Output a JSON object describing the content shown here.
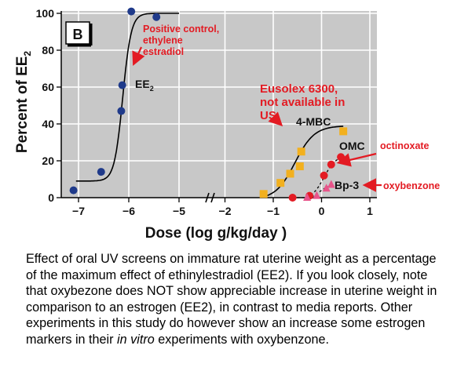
{
  "chart_data": {
    "type": "scatter",
    "panel_label": "B",
    "xlabel": "Dose (log g/kg/day )",
    "ylabel": "Percent of EE",
    "ylabel_subscript": "2",
    "ylim": [
      0,
      100
    ],
    "xlim_left": [
      -7.3,
      -4.8
    ],
    "xlim_right": [
      -2.3,
      1.1
    ],
    "axis_break_between": [
      -5,
      -2
    ],
    "x_ticks": [
      "−7",
      "−6",
      "−5",
      "−2",
      "−1",
      "0",
      "1"
    ],
    "y_ticks": [
      "0",
      "20",
      "40",
      "60",
      "80",
      "100"
    ],
    "background": "#c8c8c8",
    "grid": true,
    "series": [
      {
        "name": "EE",
        "name_subscript": "2",
        "marker": "circle",
        "color": "#1f3a8a",
        "x": [
          -7.1,
          -6.55,
          -6.15,
          -6.13,
          -5.95,
          -5.45
        ],
        "y": [
          4,
          14,
          47,
          61,
          101,
          98
        ]
      },
      {
        "name": "4-MBC",
        "marker": "square",
        "color": "#f2b01e",
        "x": [
          -1.2,
          -0.85,
          -0.65,
          -0.45,
          -0.42,
          0.45
        ],
        "y": [
          2,
          8,
          13,
          17,
          25,
          36
        ]
      },
      {
        "name": "OMC",
        "marker": "circle",
        "color": "#e31b23",
        "x": [
          -0.6,
          -0.25,
          0.05,
          0.2,
          0.4
        ],
        "y": [
          0,
          1,
          12,
          18,
          22
        ]
      },
      {
        "name": "Bp-3",
        "marker": "triangle",
        "color": "#e8548a",
        "x": [
          -0.3,
          -0.1,
          0.1,
          0.2
        ],
        "y": [
          0,
          1,
          5,
          7
        ]
      }
    ],
    "annotations": [
      {
        "text": "Positive control,\nethylene\nestradiol",
        "color": "#e31b23"
      },
      {
        "text": "Eusolex 6300,\nnot available in\nUS",
        "color": "#e31b23"
      },
      {
        "text": "octinoxate",
        "color": "#e31b23"
      },
      {
        "text": "oxybenzone",
        "color": "#e31b23"
      }
    ]
  },
  "caption": {
    "part1": "Effect of oral UV screens on immature rat uterine weight as a percentage of the maximum effect of ethinylestradiol (EE2). If you look closely, note that oxybezone does NOT show appreciable increase in uterine weight in comparison to an estrogen (EE2), in contrast to media reports.  Other experiments in this study do however show an increase some estrogen markers in their ",
    "italic": "in vitro",
    "part2": " experiments with oxybenzone."
  }
}
